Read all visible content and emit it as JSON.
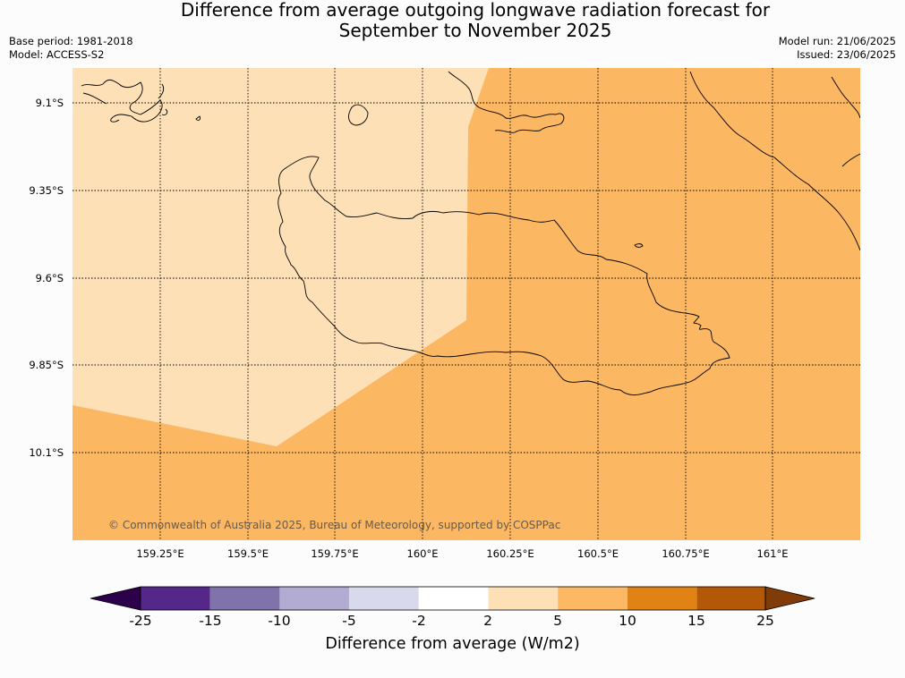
{
  "title_line1": "Difference from average outgoing longwave radiation forecast for",
  "title_line2": "September to November 2025",
  "meta": {
    "base_period": "Base period: 1981-2018",
    "model": "Model: ACCESS-S2",
    "model_run": "Model run: 21/06/2025",
    "issued": "Issued: 23/06/2025"
  },
  "map": {
    "lat_labels": [
      "9.1°S",
      "9.35°S",
      "9.6°S",
      "9.85°S",
      "10.1°S"
    ],
    "lon_labels": [
      "159.25°E",
      "159.5°E",
      "159.75°E",
      "160°E",
      "160.25°E",
      "160.5°E",
      "160.75°E",
      "161°E"
    ],
    "fill_colors": {
      "light_band": "#fde0b6",
      "mid_band": "#fbb762"
    },
    "copyright": "© Commonwealth of Australia 2025, Bureau of Meteorology, supported by COSPPac"
  },
  "colorbar": {
    "ticks": [
      "-25",
      "-15",
      "-10",
      "-5",
      "-2",
      "2",
      "5",
      "10",
      "15",
      "25"
    ],
    "colors": [
      "#542788",
      "#8073ac",
      "#b2abd2",
      "#d8daeb",
      "#ffffff",
      "#fee0b6",
      "#fdb863",
      "#e08214",
      "#b35806"
    ],
    "extend_low_color": "#2d004b",
    "extend_high_color": "#7f3b08",
    "label": "Difference from average (W/m2)"
  }
}
